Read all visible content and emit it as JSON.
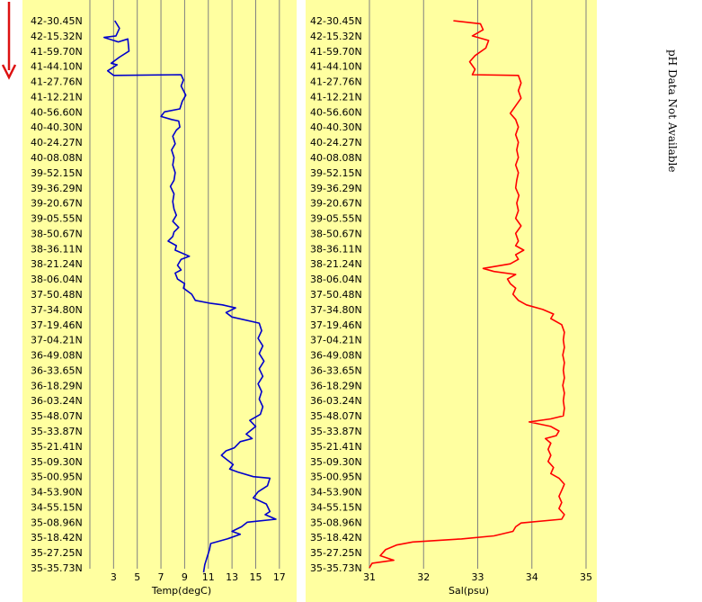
{
  "note": "pH Data Not Available",
  "colors": {
    "panel_bg": "#ffffa0",
    "temp_line": "#0000cc",
    "sal_line": "#ff0000",
    "grid": "#808080",
    "arrow": "#dd1111"
  },
  "lat_labels": [
    "42-30.45N",
    "42-15.32N",
    "41-59.70N",
    "41-44.10N",
    "41-27.76N",
    "41-12.21N",
    "40-56.60N",
    "40-40.30N",
    "40-24.27N",
    "40-08.08N",
    "39-52.15N",
    "39-36.29N",
    "39-20.67N",
    "39-05.55N",
    "38-50.67N",
    "38-36.11N",
    "38-21.24N",
    "38-06.04N",
    "37-50.48N",
    "37-34.80N",
    "37-19.46N",
    "37-04.21N",
    "36-49.08N",
    "36-33.65N",
    "36-18.29N",
    "36-03.24N",
    "35-48.07N",
    "35-33.87N",
    "35-21.41N",
    "35-09.30N",
    "35-00.95N",
    "34-53.90N",
    "34-55.15N",
    "35-08.96N",
    "35-18.42N",
    "35-27.25N",
    "35-35.73N"
  ],
  "chart_data": [
    {
      "type": "line",
      "xlabel": "Temp(degC)",
      "ylabel": "",
      "xlim": [
        1,
        18
      ],
      "xticks": [
        1,
        3,
        5,
        7,
        9,
        11,
        13,
        15,
        17
      ],
      "grid": true,
      "series": [
        {
          "color": "#0000cc",
          "points": [
            [
              3.1,
              0
            ],
            [
              3.5,
              0.5
            ],
            [
              3.2,
              1
            ],
            [
              2.2,
              1.1
            ],
            [
              3.4,
              1.4
            ],
            [
              4.2,
              1.2
            ],
            [
              4.3,
              2
            ],
            [
              3.5,
              2.4
            ],
            [
              2.8,
              2.8
            ],
            [
              3.3,
              2.9
            ],
            [
              2.5,
              3.3
            ],
            [
              3.0,
              3.6
            ],
            [
              8.7,
              3.55
            ],
            [
              8.9,
              3.9
            ],
            [
              8.7,
              4.3
            ],
            [
              9.1,
              4.9
            ],
            [
              8.8,
              5.3
            ],
            [
              8.6,
              5.8
            ],
            [
              7.3,
              6.0
            ],
            [
              7.0,
              6.3
            ],
            [
              7.9,
              6.5
            ],
            [
              8.5,
              6.6
            ],
            [
              8.6,
              7.0
            ],
            [
              8.3,
              7.2
            ],
            [
              8.0,
              7.6
            ],
            [
              8.2,
              8.1
            ],
            [
              7.9,
              8.5
            ],
            [
              8.1,
              9.0
            ],
            [
              8.0,
              9.5
            ],
            [
              8.2,
              10.0
            ],
            [
              8.1,
              10.5
            ],
            [
              7.8,
              10.9
            ],
            [
              8.1,
              11.4
            ],
            [
              8.0,
              11.9
            ],
            [
              8.1,
              12.4
            ],
            [
              8.3,
              12.8
            ],
            [
              8.0,
              13.2
            ],
            [
              8.5,
              13.6
            ],
            [
              8.1,
              13.9
            ],
            [
              8.0,
              14.2
            ],
            [
              7.6,
              14.5
            ],
            [
              8.3,
              14.8
            ],
            [
              8.2,
              15.1
            ],
            [
              9.4,
              15.5
            ],
            [
              8.7,
              15.7
            ],
            [
              8.4,
              16.1
            ],
            [
              8.7,
              16.4
            ],
            [
              8.2,
              16.6
            ],
            [
              8.4,
              17.0
            ],
            [
              9.0,
              17.3
            ],
            [
              8.9,
              17.6
            ],
            [
              9.6,
              18.0
            ],
            [
              9.9,
              18.4
            ],
            [
              11.2,
              18.6
            ],
            [
              12.2,
              18.7
            ],
            [
              13.3,
              18.9
            ],
            [
              12.5,
              19.2
            ],
            [
              13.0,
              19.5
            ],
            [
              15.3,
              19.9
            ],
            [
              15.5,
              20.4
            ],
            [
              15.2,
              20.9
            ],
            [
              15.6,
              21.4
            ],
            [
              15.3,
              21.9
            ],
            [
              15.7,
              22.4
            ],
            [
              15.3,
              22.9
            ],
            [
              15.6,
              23.4
            ],
            [
              15.2,
              23.9
            ],
            [
              15.5,
              24.4
            ],
            [
              15.3,
              24.9
            ],
            [
              15.6,
              25.4
            ],
            [
              15.4,
              25.9
            ],
            [
              14.5,
              26.3
            ],
            [
              15.0,
              26.7
            ],
            [
              14.2,
              27.2
            ],
            [
              14.7,
              27.5
            ],
            [
              13.7,
              27.7
            ],
            [
              13.2,
              28.1
            ],
            [
              12.5,
              28.3
            ],
            [
              12.1,
              28.6
            ],
            [
              12.6,
              28.9
            ],
            [
              13.1,
              29.2
            ],
            [
              12.8,
              29.5
            ],
            [
              13.5,
              29.7
            ],
            [
              14.8,
              30.0
            ],
            [
              16.2,
              30.1
            ],
            [
              16.0,
              30.6
            ],
            [
              15.2,
              31.0
            ],
            [
              14.8,
              31.4
            ],
            [
              15.9,
              31.8
            ],
            [
              16.2,
              32.3
            ],
            [
              15.8,
              32.5
            ],
            [
              16.7,
              32.8
            ],
            [
              14.3,
              33.0
            ],
            [
              13.8,
              33.3
            ],
            [
              13.0,
              33.6
            ],
            [
              13.7,
              33.8
            ],
            [
              12.6,
              34.1
            ],
            [
              11.2,
              34.4
            ],
            [
              11.1,
              34.8
            ],
            [
              10.9,
              35.3
            ],
            [
              10.7,
              35.8
            ],
            [
              10.6,
              36.3
            ]
          ]
        }
      ]
    },
    {
      "type": "line",
      "xlabel": "Sal(psu)",
      "ylabel": "",
      "xlim": [
        31,
        35
      ],
      "xticks": [
        31,
        32,
        33,
        34,
        35
      ],
      "grid": true,
      "series": [
        {
          "color": "#ff0000",
          "points": [
            [
              32.55,
              0
            ],
            [
              33.05,
              0.2
            ],
            [
              33.1,
              0.6
            ],
            [
              32.9,
              1.0
            ],
            [
              33.2,
              1.3
            ],
            [
              33.15,
              1.8
            ],
            [
              32.95,
              2.3
            ],
            [
              32.85,
              2.7
            ],
            [
              32.95,
              3.2
            ],
            [
              32.9,
              3.55
            ],
            [
              33.75,
              3.6
            ],
            [
              33.8,
              4.1
            ],
            [
              33.75,
              4.6
            ],
            [
              33.8,
              5.1
            ],
            [
              33.7,
              5.6
            ],
            [
              33.6,
              6.1
            ],
            [
              33.7,
              6.5
            ],
            [
              33.75,
              7.0
            ],
            [
              33.7,
              7.5
            ],
            [
              33.75,
              8.0
            ],
            [
              33.72,
              8.5
            ],
            [
              33.75,
              9.0
            ],
            [
              33.7,
              9.5
            ],
            [
              33.75,
              10.0
            ],
            [
              33.72,
              10.5
            ],
            [
              33.7,
              11.0
            ],
            [
              33.76,
              11.5
            ],
            [
              33.72,
              12.0
            ],
            [
              33.75,
              12.5
            ],
            [
              33.7,
              13.0
            ],
            [
              33.8,
              13.5
            ],
            [
              33.7,
              14.0
            ],
            [
              33.75,
              14.5
            ],
            [
              33.7,
              14.8
            ],
            [
              33.85,
              15.1
            ],
            [
              33.7,
              15.4
            ],
            [
              33.75,
              15.7
            ],
            [
              33.6,
              16.0
            ],
            [
              33.1,
              16.3
            ],
            [
              33.3,
              16.5
            ],
            [
              33.7,
              16.7
            ],
            [
              33.55,
              17.0
            ],
            [
              33.6,
              17.3
            ],
            [
              33.7,
              17.6
            ],
            [
              33.65,
              18.0
            ],
            [
              33.75,
              18.4
            ],
            [
              33.9,
              18.7
            ],
            [
              34.2,
              19.0
            ],
            [
              34.4,
              19.3
            ],
            [
              34.35,
              19.6
            ],
            [
              34.55,
              20.0
            ],
            [
              34.6,
              20.5
            ],
            [
              34.58,
              21.0
            ],
            [
              34.6,
              21.5
            ],
            [
              34.57,
              22.0
            ],
            [
              34.6,
              22.5
            ],
            [
              34.58,
              23.0
            ],
            [
              34.6,
              23.5
            ],
            [
              34.57,
              24.0
            ],
            [
              34.6,
              24.5
            ],
            [
              34.58,
              25.0
            ],
            [
              34.6,
              25.5
            ],
            [
              34.58,
              26.0
            ],
            [
              34.35,
              26.2
            ],
            [
              33.95,
              26.4
            ],
            [
              34.35,
              26.7
            ],
            [
              34.5,
              27.0
            ],
            [
              34.45,
              27.3
            ],
            [
              34.25,
              27.5
            ],
            [
              34.35,
              27.8
            ],
            [
              34.3,
              28.2
            ],
            [
              34.35,
              28.6
            ],
            [
              34.3,
              29.0
            ],
            [
              34.4,
              29.4
            ],
            [
              34.35,
              29.8
            ],
            [
              34.5,
              30.1
            ],
            [
              34.6,
              30.5
            ],
            [
              34.55,
              30.9
            ],
            [
              34.5,
              31.3
            ],
            [
              34.55,
              31.7
            ],
            [
              34.5,
              32.1
            ],
            [
              34.6,
              32.5
            ],
            [
              34.55,
              32.8
            ],
            [
              33.8,
              33.05
            ],
            [
              33.7,
              33.3
            ],
            [
              33.65,
              33.6
            ],
            [
              33.3,
              33.9
            ],
            [
              32.7,
              34.1
            ],
            [
              31.8,
              34.3
            ],
            [
              31.5,
              34.5
            ],
            [
              31.3,
              34.8
            ],
            [
              31.2,
              35.2
            ],
            [
              31.45,
              35.5
            ],
            [
              31.05,
              35.7
            ],
            [
              31.0,
              36.0
            ]
          ]
        }
      ]
    }
  ]
}
